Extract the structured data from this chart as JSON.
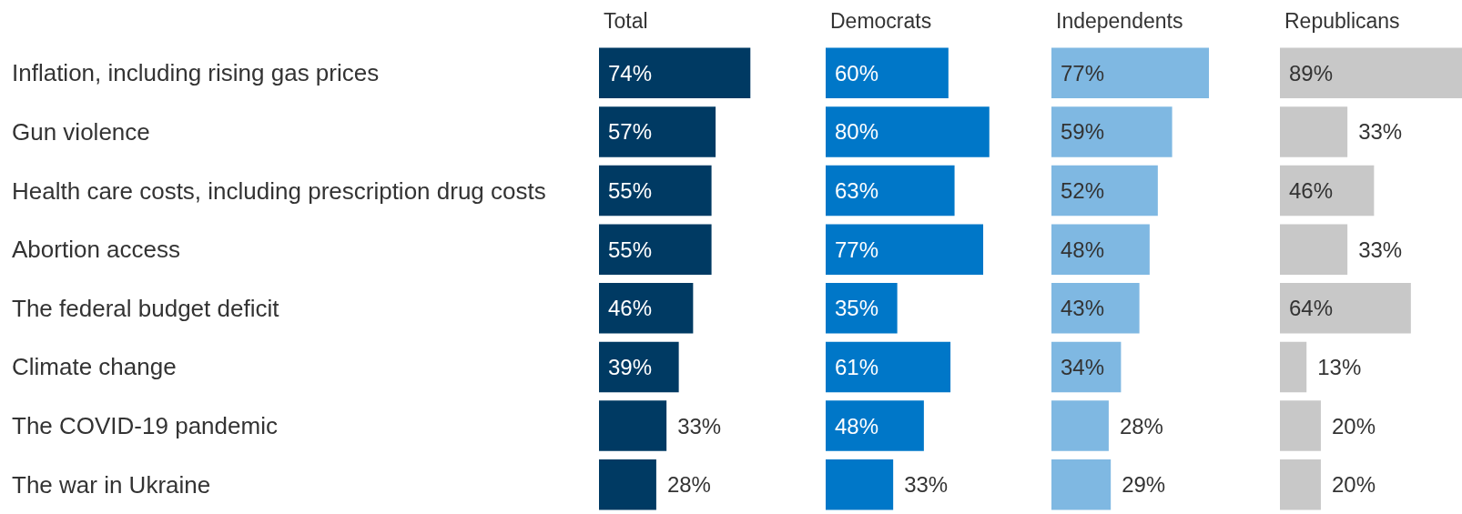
{
  "chart_data": [
    {
      "type": "bar",
      "orientation": "horizontal",
      "title": "Total",
      "categories": [
        "Inflation, including rising gas prices",
        "Gun violence",
        "Health care costs, including prescription drug costs",
        "Abortion access",
        "The federal budget deficit",
        "Climate change",
        "The COVID-19 pandemic",
        "The war in Ukraine"
      ],
      "values": [
        74,
        57,
        55,
        55,
        46,
        39,
        33,
        28
      ],
      "color": "#003a63",
      "value_labels": [
        "74%",
        "57%",
        "55%",
        "55%",
        "46%",
        "39%",
        "33%",
        "28%"
      ],
      "tick_labels": "y"
    },
    {
      "type": "bar",
      "orientation": "horizontal",
      "title": "Democrats",
      "categories": [
        null,
        null,
        null,
        null,
        null,
        null,
        null,
        null
      ],
      "values": [
        60,
        80,
        63,
        77,
        35,
        61,
        48,
        33
      ],
      "color": "#0077c8",
      "value_labels": [
        "60%",
        "80%",
        "63%",
        "77%",
        "35%",
        "61%",
        "48%",
        "33%"
      ],
      "tick_labels": false
    },
    {
      "type": "bar",
      "orientation": "horizontal",
      "title": "Independents",
      "categories": [
        null,
        null,
        null,
        null,
        null,
        null,
        null,
        null
      ],
      "values": [
        77,
        59,
        52,
        48,
        43,
        34,
        28,
        29
      ],
      "color": "#7fb8e2",
      "value_labels": [
        "77%",
        "59%",
        "52%",
        "48%",
        "43%",
        "34%",
        "28%",
        "29%"
      ],
      "tick_labels": false
    },
    {
      "type": "bar",
      "orientation": "horizontal",
      "title": "Republicans",
      "categories": [
        null,
        null,
        null,
        null,
        null,
        null,
        null,
        null
      ],
      "values": [
        89,
        33,
        46,
        33,
        64,
        13,
        20,
        20
      ],
      "color": "#c8c8c8",
      "value_labels": [
        "89%",
        "33%",
        "46%",
        "33%",
        "64%",
        "13%",
        "20%",
        "20%"
      ],
      "tick_labels": false
    }
  ]
}
